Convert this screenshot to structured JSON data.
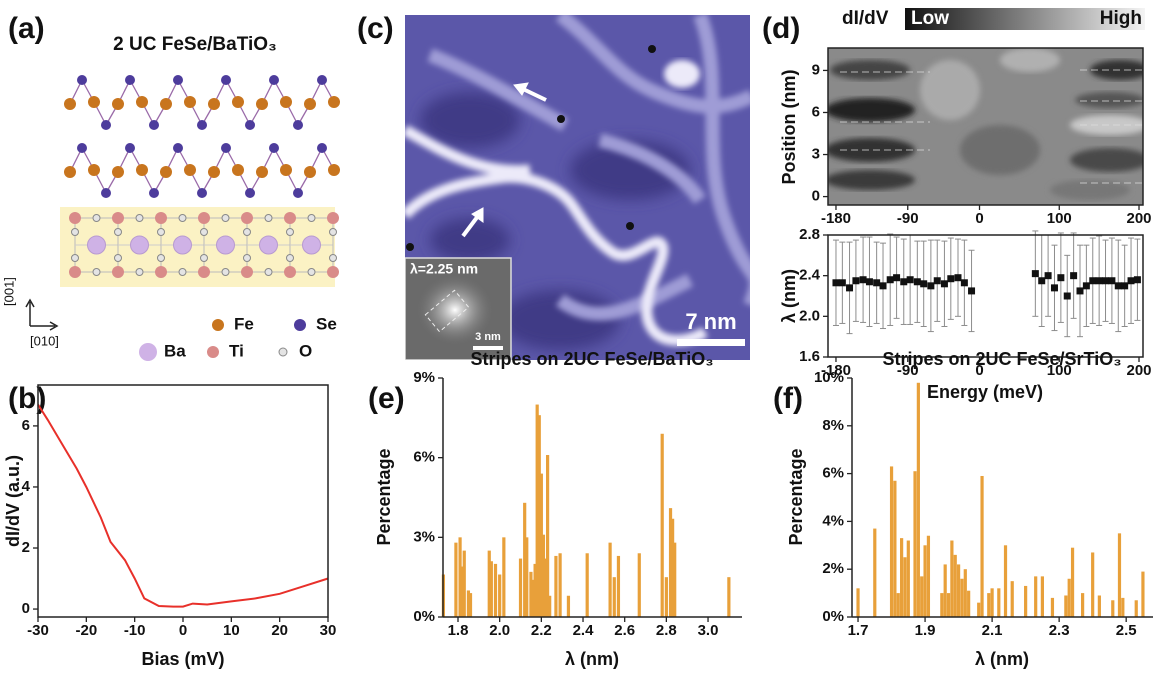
{
  "figure": {
    "panel_labels": [
      "(a)",
      "(b)",
      "(c)",
      "(d)",
      "(e)",
      "(f)"
    ],
    "structure": {
      "title": "2 UC FeSe/BaTiO₃",
      "axis_vertical": "[001]",
      "axis_horizontal": "[010]",
      "legend": [
        {
          "name": "Fe",
          "color": "#c8751e"
        },
        {
          "name": "Se",
          "color": "#4d3c9c"
        },
        {
          "name": "Ba",
          "color": "#cfb2e6"
        },
        {
          "name": "Ti",
          "color": "#d98b89"
        },
        {
          "name": "O",
          "color": "#e4e4e4"
        }
      ]
    },
    "stm_image": {
      "scale_bar": "7 nm",
      "inset_label": "λ=2.25 nm",
      "inset_scale_bar": "3 nm"
    }
  },
  "chart_data": [
    {
      "type": "line",
      "xlabel": "Bias (mV)",
      "ylabel": "dI/dV (a.u.)",
      "color": "#e8302a",
      "x": [
        -30,
        -28,
        -25,
        -22,
        -20,
        -17,
        -15,
        -12,
        -10,
        -8,
        -5,
        -2,
        0,
        2,
        5,
        10,
        15,
        20,
        25,
        30
      ],
      "values": [
        6.7,
        6.2,
        5.4,
        4.6,
        4.0,
        3.0,
        2.2,
        1.6,
        1.0,
        0.35,
        0.1,
        0.08,
        0.08,
        0.18,
        0.15,
        0.25,
        0.35,
        0.5,
        0.75,
        1.0
      ],
      "xlim": [
        -30,
        30
      ],
      "xticks": [
        -30,
        -20,
        -10,
        0,
        10,
        20,
        30
      ],
      "ylim": [
        -0.26,
        7.34
      ],
      "yticks": [
        0,
        2,
        4,
        6
      ]
    },
    {
      "type": "heatmap",
      "title": "dI/dV",
      "colorbar_labels": [
        "Low",
        "High"
      ],
      "ylabel": "Position (nm)",
      "xlim": [
        -190,
        205
      ],
      "xticks": [
        -180,
        -90,
        0,
        100,
        200
      ],
      "ylim": [
        -0.6,
        10.6
      ],
      "yticks": [
        0,
        3,
        6,
        9
      ]
    },
    {
      "type": "errorbar",
      "xlabel": "Energy (meV)",
      "ylabel": "λ (nm)",
      "color": "#111111",
      "error_color": "#8c8c8c",
      "x": [
        -180,
        -172,
        -163,
        -155,
        -146,
        -138,
        -129,
        -121,
        -112,
        -104,
        -95,
        -87,
        -78,
        -70,
        -61,
        -53,
        -44,
        -36,
        -27,
        -19,
        -10,
        70,
        78,
        86,
        94,
        102,
        110,
        118,
        126,
        134,
        142,
        150,
        158,
        166,
        174,
        182,
        190,
        198
      ],
      "values": [
        2.33,
        2.33,
        2.28,
        2.35,
        2.36,
        2.34,
        2.33,
        2.3,
        2.36,
        2.38,
        2.34,
        2.36,
        2.34,
        2.32,
        2.3,
        2.35,
        2.32,
        2.37,
        2.38,
        2.33,
        2.25,
        2.42,
        2.35,
        2.4,
        2.28,
        2.38,
        2.2,
        2.4,
        2.25,
        2.3,
        2.35,
        2.35,
        2.35,
        2.35,
        2.3,
        2.3,
        2.35,
        2.36
      ],
      "errors": [
        0.42,
        0.4,
        0.45,
        0.4,
        0.42,
        0.44,
        0.4,
        0.42,
        0.45,
        0.4,
        0.42,
        0.44,
        0.4,
        0.42,
        0.45,
        0.4,
        0.42,
        0.4,
        0.38,
        0.42,
        0.4,
        0.42,
        0.45,
        0.4,
        0.42,
        0.44,
        0.4,
        0.42,
        0.45,
        0.4,
        0.42,
        0.44,
        0.4,
        0.42,
        0.45,
        0.4,
        0.42,
        0.4
      ],
      "xlim": [
        -190,
        205
      ],
      "xticks": [
        -180,
        -90,
        0,
        100,
        200
      ],
      "ylim": [
        1.6,
        2.8
      ],
      "yticks": [
        1.6,
        {
          "value": 2.0,
          "label": "2.0"
        },
        2.4,
        2.8
      ]
    },
    {
      "type": "bar",
      "title": "Stripes on 2UC FeSe/BaTiO₃",
      "xlabel": "λ (nm)",
      "ylabel": "Percentage",
      "color": "#e8a03a",
      "x": [
        1.73,
        1.79,
        1.81,
        1.82,
        1.83,
        1.85,
        1.86,
        1.95,
        1.96,
        1.98,
        2.0,
        2.02,
        2.1,
        2.12,
        2.13,
        2.15,
        2.16,
        2.17,
        2.18,
        2.19,
        2.2,
        2.21,
        2.22,
        2.23,
        2.24,
        2.27,
        2.29,
        2.33,
        2.42,
        2.53,
        2.55,
        2.57,
        2.67,
        2.78,
        2.8,
        2.82,
        2.83,
        2.84,
        3.1
      ],
      "values": [
        1.6,
        2.8,
        3.0,
        1.9,
        2.5,
        1.0,
        0.9,
        2.5,
        2.1,
        2.0,
        1.6,
        3.0,
        2.2,
        4.3,
        3.0,
        1.7,
        1.4,
        2.0,
        8.0,
        7.6,
        5.4,
        3.1,
        2.2,
        6.1,
        0.8,
        2.3,
        2.4,
        0.8,
        2.4,
        2.8,
        1.5,
        2.3,
        2.4,
        6.9,
        1.5,
        4.1,
        3.7,
        2.8,
        1.5
      ],
      "xlim": [
        1.728,
        3.163
      ],
      "xticks": [
        1.8,
        {
          "value": 2.0,
          "label": "2.0"
        },
        2.2,
        2.4,
        2.6,
        2.8,
        {
          "value": 3.0,
          "label": "3.0"
        }
      ],
      "ylim": [
        0,
        9
      ],
      "yticks": [
        {
          "value": 0,
          "label": "0%"
        },
        {
          "value": 3,
          "label": "3%"
        },
        {
          "value": 6,
          "label": "6%"
        },
        {
          "value": 9,
          "label": "9%"
        }
      ]
    },
    {
      "type": "bar",
      "title": "Stripes on 2UC FeSe/SrTiO₃",
      "xlabel": "λ (nm)",
      "ylabel": "Percentage",
      "color": "#e8a03a",
      "x": [
        1.7,
        1.75,
        1.8,
        1.81,
        1.82,
        1.83,
        1.84,
        1.85,
        1.87,
        1.88,
        1.89,
        1.9,
        1.91,
        1.95,
        1.96,
        1.97,
        1.98,
        1.99,
        2.0,
        2.01,
        2.02,
        2.03,
        2.06,
        2.07,
        2.09,
        2.1,
        2.12,
        2.14,
        2.16,
        2.2,
        2.23,
        2.25,
        2.28,
        2.32,
        2.33,
        2.34,
        2.37,
        2.4,
        2.42,
        2.46,
        2.48,
        2.49,
        2.53,
        2.55
      ],
      "values": [
        1.2,
        3.7,
        6.3,
        5.7,
        1.0,
        3.3,
        2.5,
        3.2,
        6.1,
        9.8,
        1.7,
        3.0,
        3.4,
        1.0,
        2.2,
        1.0,
        3.2,
        2.6,
        2.2,
        1.6,
        2.0,
        1.1,
        0.6,
        5.9,
        1.0,
        1.2,
        1.2,
        3.0,
        1.5,
        1.3,
        1.7,
        1.7,
        0.8,
        0.9,
        1.6,
        2.9,
        1.0,
        2.7,
        0.9,
        0.7,
        3.5,
        0.8,
        0.7,
        1.9
      ],
      "xlim": [
        1.682,
        2.58
      ],
      "xticks": [
        1.7,
        1.9,
        2.1,
        2.3,
        2.5
      ],
      "ylim": [
        0,
        10
      ],
      "yticks": [
        {
          "value": 0,
          "label": "0%"
        },
        {
          "value": 2,
          "label": "2%"
        },
        {
          "value": 4,
          "label": "4%"
        },
        {
          "value": 6,
          "label": "6%"
        },
        {
          "value": 8,
          "label": "8%"
        },
        {
          "value": 10,
          "label": "10%"
        }
      ]
    }
  ]
}
